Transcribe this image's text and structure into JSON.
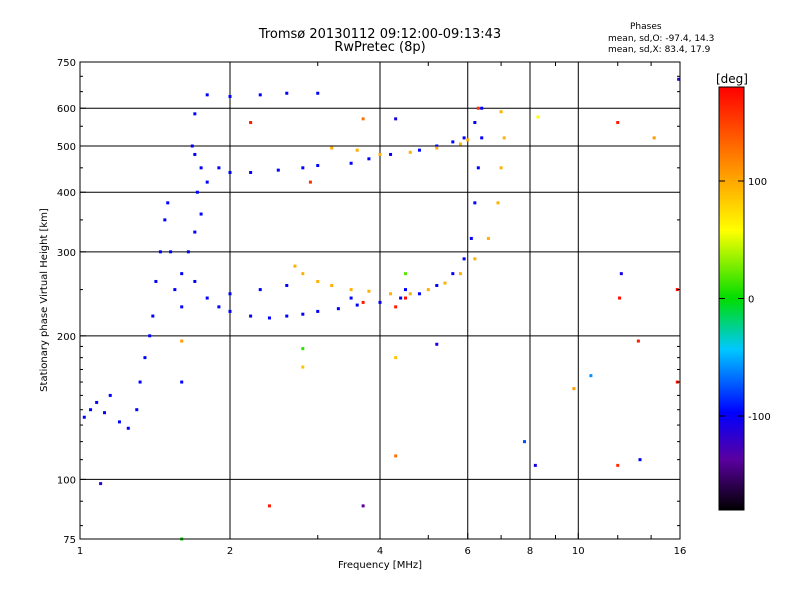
{
  "header": {
    "title": "Tromsø 20130112 09:12:00-09:13:43",
    "subtitle": "RwPretec (8p)"
  },
  "stats": {
    "heading": "Phases",
    "line1": "mean, sd,O: -97.4, 14.3",
    "line2": "mean, sd,X: 83.4, 17.9"
  },
  "colorbar": {
    "unit": "[deg]",
    "ticks": [
      100,
      0,
      -100
    ],
    "range": [
      -180,
      180
    ]
  },
  "chart_data": {
    "type": "scatter",
    "xlabel": "Frequency [MHz]",
    "ylabel": "Stationary phase Virtual Height [km]",
    "x_scale": "log",
    "y_scale": "log",
    "xlim": [
      1,
      16
    ],
    "ylim": [
      75,
      750
    ],
    "x_ticks": [
      1,
      2,
      4,
      6,
      8,
      10,
      16
    ],
    "y_ticks": [
      75,
      100,
      200,
      300,
      400,
      500,
      600,
      750
    ],
    "grid": true,
    "series": [
      {
        "name": "",
        "color_by": "phase",
        "points": [
          [
            1.02,
            135,
            -100
          ],
          [
            1.05,
            140,
            -100
          ],
          [
            1.08,
            145,
            -100
          ],
          [
            1.12,
            138,
            -100
          ],
          [
            1.15,
            150,
            -100
          ],
          [
            1.2,
            132,
            -100
          ],
          [
            1.25,
            128,
            -100
          ],
          [
            1.3,
            140,
            -100
          ],
          [
            1.32,
            160,
            -100
          ],
          [
            1.35,
            180,
            -100
          ],
          [
            1.38,
            200,
            -100
          ],
          [
            1.4,
            220,
            -100
          ],
          [
            1.42,
            260,
            -100
          ],
          [
            1.45,
            300,
            -100
          ],
          [
            1.48,
            350,
            -100
          ],
          [
            1.5,
            380,
            -100
          ],
          [
            1.52,
            300,
            -100
          ],
          [
            1.55,
            250,
            -100
          ],
          [
            1.6,
            230,
            -100
          ],
          [
            1.7,
            480,
            -100
          ],
          [
            1.75,
            450,
            -100
          ],
          [
            1.8,
            420,
            -100
          ],
          [
            1.9,
            450,
            -100
          ],
          [
            2.0,
            440,
            -100
          ],
          [
            2.2,
            440,
            -100
          ],
          [
            2.5,
            445,
            -100
          ],
          [
            2.8,
            450,
            -100
          ],
          [
            3.0,
            455,
            -100
          ],
          [
            3.5,
            460,
            -100
          ],
          [
            3.8,
            470,
            -100
          ],
          [
            4.2,
            480,
            -100
          ],
          [
            4.8,
            490,
            -100
          ],
          [
            5.2,
            500,
            -100
          ],
          [
            5.6,
            510,
            -100
          ],
          [
            5.9,
            520,
            -100
          ],
          [
            6.2,
            560,
            -100
          ],
          [
            6.4,
            600,
            -100
          ],
          [
            1.8,
            640,
            -100
          ],
          [
            2.0,
            635,
            -100
          ],
          [
            2.3,
            640,
            -100
          ],
          [
            2.6,
            645,
            -100
          ],
          [
            3.0,
            645,
            -100
          ],
          [
            1.7,
            260,
            -100
          ],
          [
            1.8,
            240,
            -100
          ],
          [
            1.9,
            230,
            -100
          ],
          [
            2.0,
            225,
            -100
          ],
          [
            2.2,
            220,
            -100
          ],
          [
            2.4,
            218,
            -100
          ],
          [
            2.6,
            220,
            -100
          ],
          [
            2.8,
            222,
            -100
          ],
          [
            3.0,
            225,
            -100
          ],
          [
            3.3,
            228,
            -100
          ],
          [
            3.6,
            232,
            -100
          ],
          [
            4.0,
            235,
            -100
          ],
          [
            4.4,
            240,
            -100
          ],
          [
            4.8,
            245,
            -100
          ],
          [
            5.2,
            255,
            -100
          ],
          [
            5.6,
            270,
            -100
          ],
          [
            5.9,
            290,
            -100
          ],
          [
            6.1,
            320,
            -100
          ],
          [
            6.2,
            380,
            -100
          ],
          [
            6.3,
            450,
            -100
          ],
          [
            6.4,
            520,
            -100
          ],
          [
            2.7,
            280,
            100
          ],
          [
            2.8,
            270,
            100
          ],
          [
            3.0,
            260,
            100
          ],
          [
            3.2,
            255,
            100
          ],
          [
            3.5,
            250,
            100
          ],
          [
            3.8,
            248,
            100
          ],
          [
            4.2,
            245,
            100
          ],
          [
            4.6,
            245,
            100
          ],
          [
            5.0,
            250,
            100
          ],
          [
            5.4,
            258,
            100
          ],
          [
            5.8,
            270,
            100
          ],
          [
            6.2,
            290,
            100
          ],
          [
            6.6,
            320,
            100
          ],
          [
            6.9,
            380,
            100
          ],
          [
            7.0,
            450,
            100
          ],
          [
            7.1,
            520,
            100
          ],
          [
            7.0,
            590,
            100
          ],
          [
            3.2,
            495,
            100
          ],
          [
            3.6,
            490,
            100
          ],
          [
            4.0,
            480,
            100
          ],
          [
            4.6,
            485,
            100
          ],
          [
            5.2,
            495,
            100
          ],
          [
            5.8,
            505,
            100
          ],
          [
            6.0,
            515,
            100
          ],
          [
            2.0,
            245,
            -100
          ],
          [
            2.3,
            250,
            -100
          ],
          [
            2.6,
            255,
            -100
          ],
          [
            3.5,
            240,
            -100
          ],
          [
            4.5,
            250,
            -100
          ],
          [
            1.6,
            270,
            -100
          ],
          [
            1.65,
            300,
            -100
          ],
          [
            1.7,
            330,
            -100
          ],
          [
            1.75,
            360,
            -100
          ],
          [
            1.72,
            400,
            -100
          ],
          [
            1.68,
            500,
            -100
          ],
          [
            4.3,
            230,
            170
          ],
          [
            4.5,
            240,
            175
          ],
          [
            3.7,
            235,
            170
          ],
          [
            6.3,
            600,
            160
          ],
          [
            1.1,
            98,
            -120
          ],
          [
            1.6,
            75,
            0
          ],
          [
            2.4,
            88,
            170
          ],
          [
            3.7,
            88,
            -140
          ],
          [
            4.3,
            112,
            130
          ],
          [
            4.3,
            180,
            90
          ],
          [
            2.8,
            172,
            90
          ],
          [
            2.8,
            188,
            10
          ],
          [
            1.6,
            195,
            110
          ],
          [
            1.6,
            160,
            -100
          ],
          [
            5.2,
            192,
            -110
          ],
          [
            7.8,
            120,
            -80
          ],
          [
            8.2,
            107,
            -110
          ],
          [
            9.8,
            155,
            110
          ],
          [
            10.6,
            165,
            -60
          ],
          [
            12.0,
            107,
            160
          ],
          [
            12.1,
            240,
            175
          ],
          [
            12.2,
            270,
            -110
          ],
          [
            13.2,
            195,
            170
          ],
          [
            13.3,
            110,
            -100
          ],
          [
            15.8,
            160,
            170
          ],
          [
            15.8,
            250,
            175
          ],
          [
            15.9,
            690,
            -120
          ],
          [
            8.3,
            575,
            60
          ],
          [
            12.0,
            560,
            170
          ],
          [
            14.2,
            520,
            110
          ],
          [
            3.7,
            570,
            130
          ],
          [
            4.3,
            570,
            -110
          ],
          [
            2.2,
            560,
            170
          ],
          [
            4.5,
            270,
            20
          ],
          [
            2.9,
            420,
            160
          ],
          [
            1.7,
            584,
            -100
          ]
        ]
      }
    ]
  }
}
